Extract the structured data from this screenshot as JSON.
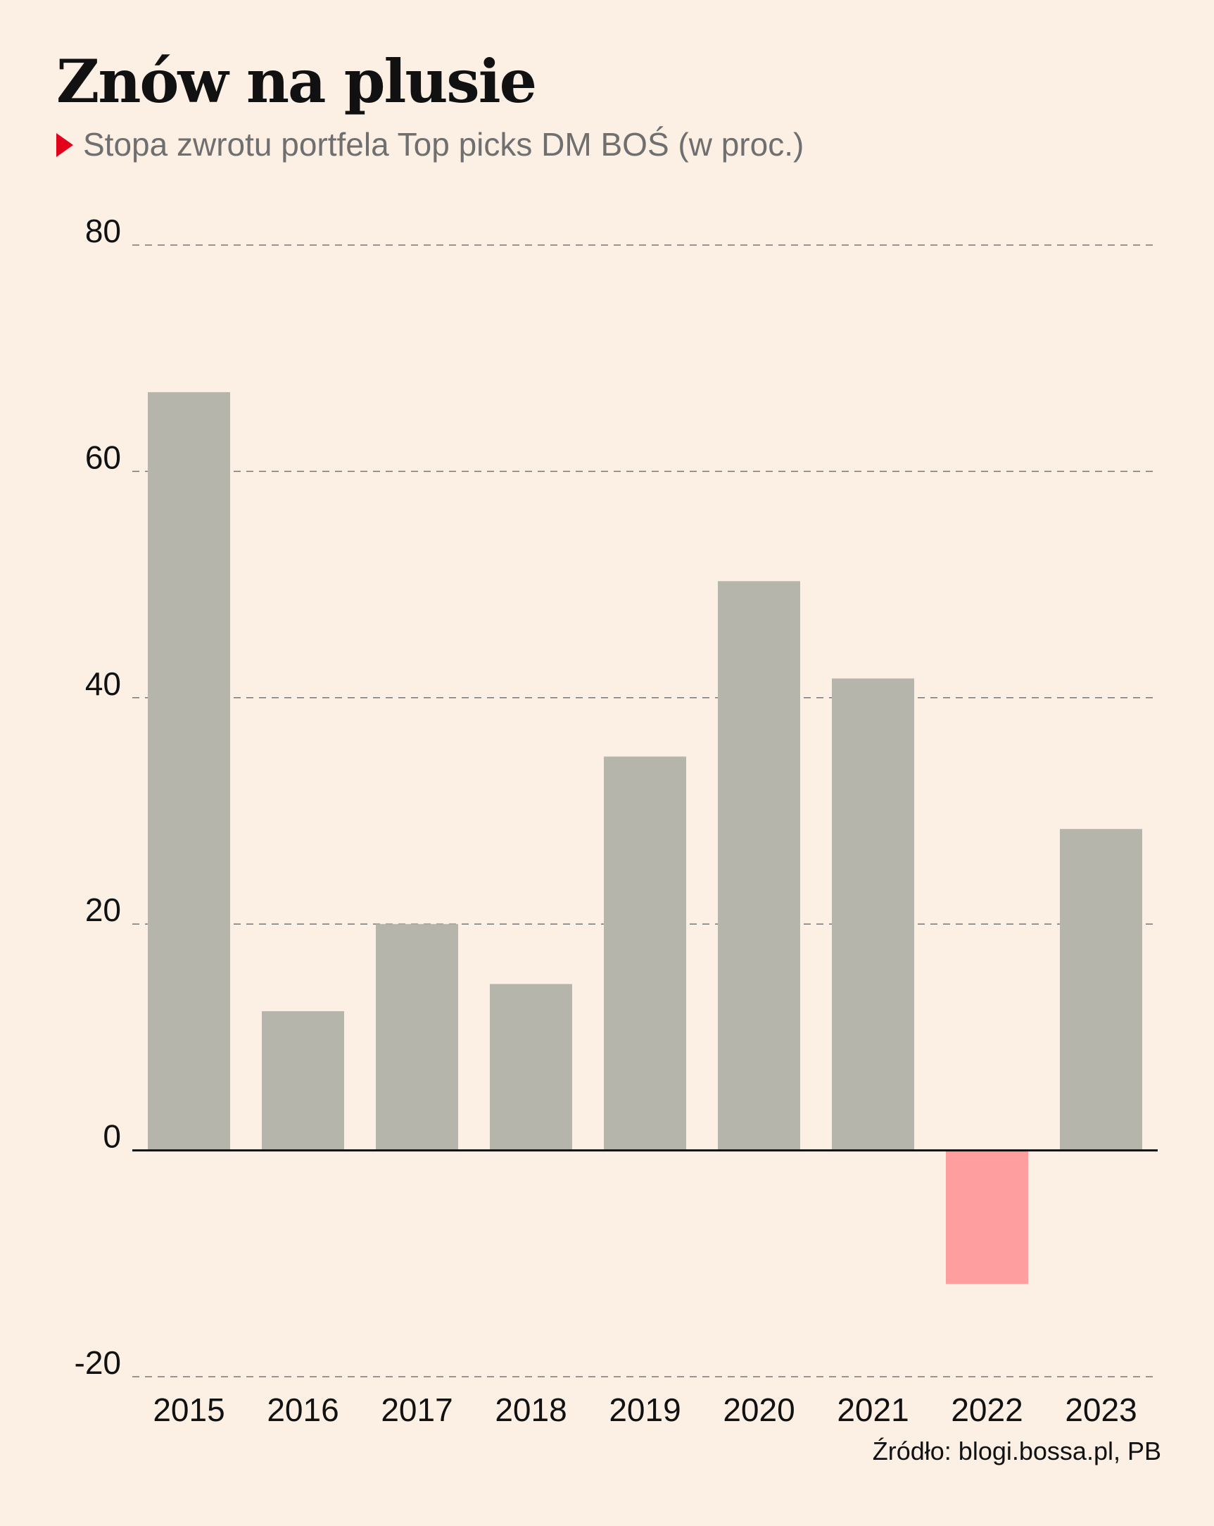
{
  "header": {
    "title": "Znów na plusie",
    "subtitle": "Stopa zwrotu portfela Top picks DM BOŚ (w proc.)"
  },
  "footer": {
    "source": "Źródło: blogi.bossa.pl, PB"
  },
  "colors": {
    "background": "#fcefe3",
    "positive_bar": "#b5b5ab",
    "negative_bar": "#ff9e9e",
    "accent_marker": "#e3001b",
    "grid": "#777777",
    "baseline": "#111111"
  },
  "chart_data": {
    "type": "bar",
    "title": "Znów na plusie",
    "subtitle": "Stopa zwrotu portfela Top picks DM BOŚ (w proc.)",
    "categories": [
      "2015",
      "2016",
      "2017",
      "2018",
      "2019",
      "2020",
      "2021",
      "2022",
      "2023"
    ],
    "values": [
      67,
      12.3,
      20,
      14.7,
      34.8,
      50.3,
      41.7,
      -11.8,
      28.4
    ],
    "ylim": [
      -20,
      80
    ],
    "yticks": [
      80,
      60,
      40,
      20,
      0,
      -20
    ],
    "ytick_labels": [
      "80",
      "60",
      "40",
      "20",
      "0",
      "-20"
    ],
    "xlabel": "",
    "ylabel": "",
    "grid": "horizontal dashed",
    "legend": "none"
  }
}
